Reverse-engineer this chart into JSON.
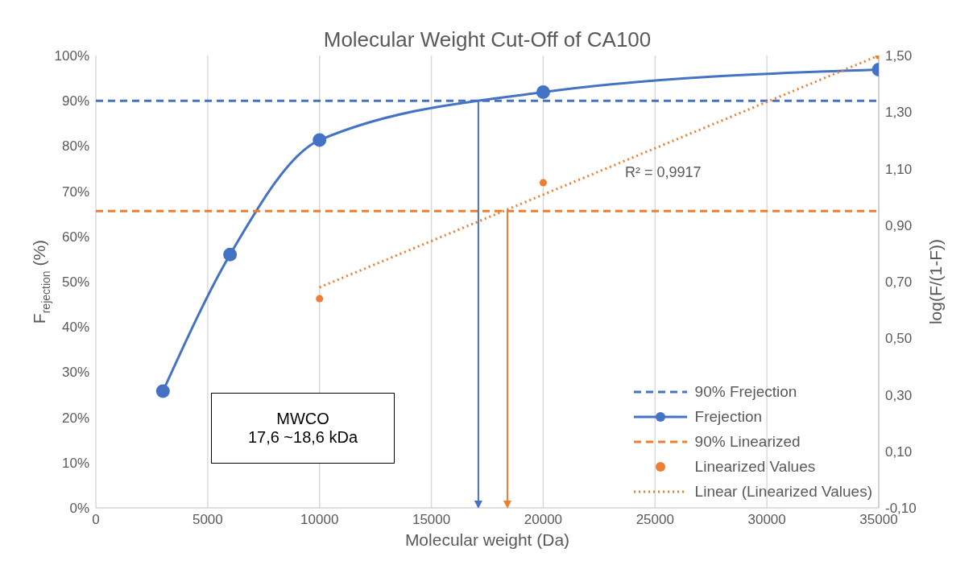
{
  "chart_data": {
    "type": "line",
    "title": "Molecular Weight Cut-Off of CA100",
    "xlabel": "Molecular weight (Da)",
    "ylabel": "F$_{rejection}$ (%)",
    "y2label": "log(F/(1-F))",
    "xlim": [
      0,
      35000
    ],
    "xticks": [
      0,
      5000,
      10000,
      15000,
      20000,
      25000,
      30000,
      35000
    ],
    "ylim": [
      0,
      100
    ],
    "yticks": [
      {
        "value": 0,
        "label": "0%"
      },
      {
        "value": 10,
        "label": "10%"
      },
      {
        "value": 20,
        "label": "20%"
      },
      {
        "value": 30,
        "label": "30%"
      },
      {
        "value": 40,
        "label": "40%"
      },
      {
        "value": 50,
        "label": "50%"
      },
      {
        "value": 60,
        "label": "60%"
      },
      {
        "value": 70,
        "label": "70%"
      },
      {
        "value": 80,
        "label": "80%"
      },
      {
        "value": 90,
        "label": "90%"
      },
      {
        "value": 100,
        "label": "100%"
      }
    ],
    "y2lim": [
      -0.1,
      1.5
    ],
    "y2ticks": [
      {
        "value": -0.1,
        "label": "-0,10"
      },
      {
        "value": 0.1,
        "label": "0,10"
      },
      {
        "value": 0.3,
        "label": "0,30"
      },
      {
        "value": 0.5,
        "label": "0,50"
      },
      {
        "value": 0.7,
        "label": "0,70"
      },
      {
        "value": 0.9,
        "label": "0,90"
      },
      {
        "value": 1.1,
        "label": "1,10"
      },
      {
        "value": 1.3,
        "label": "1,30"
      },
      {
        "value": 1.5,
        "label": "1,50"
      }
    ],
    "grid": "x",
    "legend": "bottom right",
    "series": [
      {
        "name": "90% Frejection",
        "color": "#4472c4",
        "line_style": "dashed",
        "marker": "none",
        "x": [
          0,
          35000
        ],
        "values": [
          90,
          90
        ]
      },
      {
        "name": "Frejection",
        "color": "#4472c4",
        "line_style": "solid",
        "marker": "circle",
        "x": [
          3000,
          6000,
          10000,
          20000,
          35000
        ],
        "values": [
          25.8,
          56,
          81.3,
          91.9,
          96.9
        ]
      },
      {
        "name": "90% Linearized",
        "type": "line",
        "color": "#ed7d31",
        "line_style": "dashed",
        "marker": "none",
        "axis": "y2",
        "x": [
          0,
          35000
        ],
        "values": [
          0.95,
          0.95
        ]
      },
      {
        "name": "Linearized Values",
        "type": "scatter",
        "color": "#ed7d31",
        "marker": "circle",
        "axis": "y2",
        "x": [
          10000,
          20000,
          35000
        ],
        "values": [
          0.64,
          1.05,
          1.5
        ]
      },
      {
        "name": "Linear (Linearized Values)",
        "type": "line",
        "color": "#ed7d31",
        "line_style": "dotted",
        "marker": "none",
        "axis": "y2",
        "x": [
          10000,
          35000
        ],
        "values": [
          0.68,
          1.5
        ]
      }
    ],
    "ref_lines": [
      {
        "axis": "x",
        "value": 17100,
        "color": "#4472c4"
      },
      {
        "axis": "x",
        "value": 18400,
        "color": "#ed7d31"
      }
    ],
    "annotations": [
      "R² = 0,9917",
      "MWCO\n17,6 ~18,6 kDa"
    ]
  }
}
